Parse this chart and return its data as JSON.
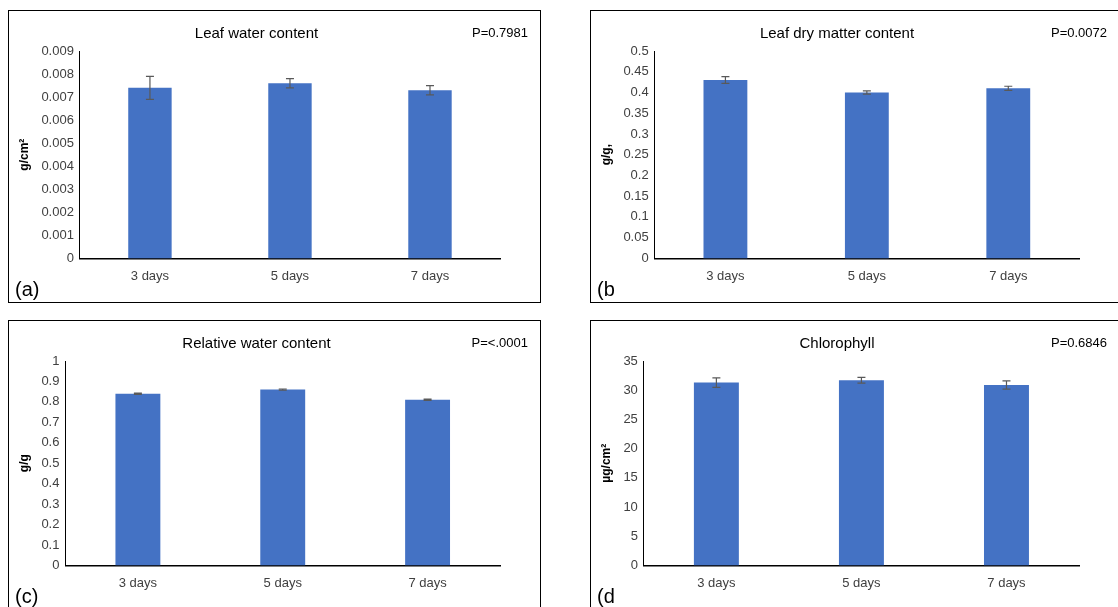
{
  "chart_data": [
    {
      "type": "bar",
      "title": "Leaf water content",
      "ylabel": "g/cm²",
      "categories": [
        "3 days",
        "5 days",
        "7 days"
      ],
      "values": [
        0.0074,
        0.0076,
        0.0073
      ],
      "errors": [
        0.0005,
        0.0002,
        0.0002
      ],
      "color": "#4472c4",
      "ylim": [
        0,
        0.009
      ],
      "yticks": [
        0,
        0.001,
        0.002,
        0.003,
        0.004,
        0.005,
        0.006,
        0.007,
        0.008,
        0.009
      ],
      "grid": false,
      "legend": false,
      "annotations": [
        "P=0.7981",
        "(a)"
      ]
    },
    {
      "type": "bar",
      "title": "Leaf dry matter content",
      "ylabel": "g/g,",
      "categories": [
        "3 days",
        "5 days",
        "7 days"
      ],
      "values": [
        0.43,
        0.4,
        0.41
      ],
      "errors": [
        0.008,
        0.004,
        0.005
      ],
      "color": "#4472c4",
      "ylim": [
        0,
        0.5
      ],
      "yticks": [
        0,
        0.05,
        0.1,
        0.15,
        0.2,
        0.25,
        0.3,
        0.35,
        0.4,
        0.45,
        0.5
      ],
      "grid": false,
      "legend": false,
      "annotations": [
        "P=0.0072",
        "(b"
      ]
    },
    {
      "type": "bar",
      "title": "Relative water content",
      "ylabel": "g/g",
      "categories": [
        "3 days",
        "5 days",
        "7 days"
      ],
      "values": [
        0.84,
        0.86,
        0.81
      ],
      "errors": [
        0.003,
        0.003,
        0.003
      ],
      "color": "#4472c4",
      "ylim": [
        0,
        1
      ],
      "yticks": [
        0,
        0.1,
        0.2,
        0.3,
        0.4,
        0.5,
        0.6,
        0.7,
        0.8,
        0.9,
        1
      ],
      "grid": false,
      "legend": false,
      "annotations": [
        "P=<.0001",
        "(c)"
      ]
    },
    {
      "type": "bar",
      "title": "Chlorophyll",
      "ylabel": "µg/cm²",
      "categories": [
        "3 days",
        "5 days",
        "7 days"
      ],
      "values": [
        31.3,
        31.7,
        30.9
      ],
      "errors": [
        0.8,
        0.5,
        0.7
      ],
      "color": "#4472c4",
      "ylim": [
        0,
        35
      ],
      "yticks": [
        0,
        5,
        10,
        15,
        20,
        25,
        30,
        35
      ],
      "grid": false,
      "legend": false,
      "annotations": [
        "P=0.6846",
        "(d"
      ]
    }
  ]
}
